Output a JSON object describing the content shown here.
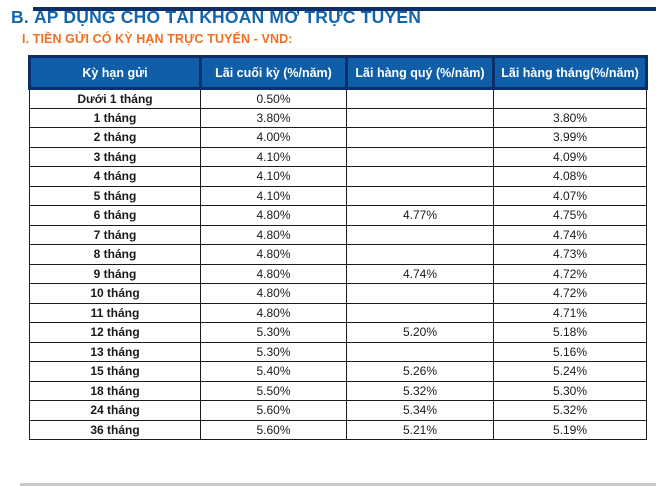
{
  "page": {
    "title": "B. ÁP DỤNG CHO TÀI KHOẢN MỞ TRỰC TUYẾN",
    "subtitle": "I. TIỀN GỬI CÓ KỲ HẠN TRỰC TUYẾN - VND:"
  },
  "colors": {
    "title_blue": "#1565ab",
    "subtitle_orange": "#f26f21",
    "header_background": "#0f5ea7",
    "header_border_navy": "#0c2f69",
    "grid_border_black": "#1c1c1c",
    "header_text": "#ffffff"
  },
  "table": {
    "columns": [
      "Kỳ hạn gửi",
      "Lãi cuối kỳ (%/năm)",
      "Lãi hàng quý (%/năm)",
      "Lãi hàng tháng(%/năm)"
    ],
    "rows": [
      {
        "term": "Dưới 1 tháng",
        "end_of_term": "0.50%",
        "quarterly": "",
        "monthly": ""
      },
      {
        "term": "1 tháng",
        "end_of_term": "3.80%",
        "quarterly": "",
        "monthly": "3.80%"
      },
      {
        "term": "2 tháng",
        "end_of_term": "4.00%",
        "quarterly": "",
        "monthly": "3.99%"
      },
      {
        "term": "3 tháng",
        "end_of_term": "4.10%",
        "quarterly": "",
        "monthly": "4.09%"
      },
      {
        "term": "4 tháng",
        "end_of_term": "4.10%",
        "quarterly": "",
        "monthly": "4.08%"
      },
      {
        "term": "5 tháng",
        "end_of_term": "4.10%",
        "quarterly": "",
        "monthly": "4.07%"
      },
      {
        "term": "6 tháng",
        "end_of_term": "4.80%",
        "quarterly": "4.77%",
        "monthly": "4.75%"
      },
      {
        "term": "7 tháng",
        "end_of_term": "4.80%",
        "quarterly": "",
        "monthly": "4.74%"
      },
      {
        "term": "8 tháng",
        "end_of_term": "4.80%",
        "quarterly": "",
        "monthly": "4.73%"
      },
      {
        "term": "9 tháng",
        "end_of_term": "4.80%",
        "quarterly": "4.74%",
        "monthly": "4.72%"
      },
      {
        "term": "10 tháng",
        "end_of_term": "4.80%",
        "quarterly": "",
        "monthly": "4.72%"
      },
      {
        "term": "11 tháng",
        "end_of_term": "4.80%",
        "quarterly": "",
        "monthly": "4.71%"
      },
      {
        "term": "12 tháng",
        "end_of_term": "5.30%",
        "quarterly": "5.20%",
        "monthly": "5.18%"
      },
      {
        "term": "13 tháng",
        "end_of_term": "5.30%",
        "quarterly": "",
        "monthly": "5.16%"
      },
      {
        "term": "15 tháng",
        "end_of_term": "5.40%",
        "quarterly": "5.26%",
        "monthly": "5.24%"
      },
      {
        "term": "18 tháng",
        "end_of_term": "5.50%",
        "quarterly": "5.32%",
        "monthly": "5.30%"
      },
      {
        "term": "24 tháng",
        "end_of_term": "5.60%",
        "quarterly": "5.34%",
        "monthly": "5.32%"
      },
      {
        "term": "36 tháng",
        "end_of_term": "5.60%",
        "quarterly": "5.21%",
        "monthly": "5.19%"
      }
    ]
  }
}
